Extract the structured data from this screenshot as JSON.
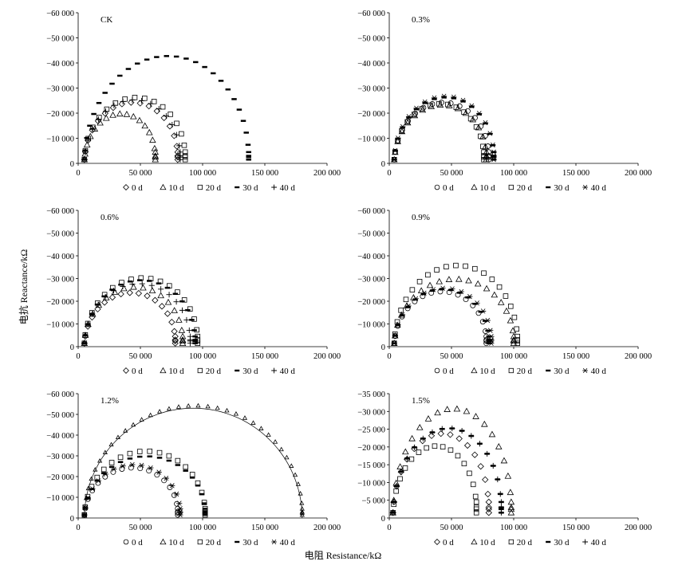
{
  "figure": {
    "ylabel": "电抗 Reactance/kΩ",
    "xlabel": "电阻 Resistance/kΩ"
  },
  "chart_data": [
    {
      "type": "scatter",
      "title": "CK",
      "x_ticks": [
        "0",
        "50 000",
        "100 000",
        "150 000",
        "200 000"
      ],
      "y_ticks": [
        "0",
        "−10 000",
        "−20 000",
        "−30 000",
        "−40 000",
        "−50 000",
        "−60 000"
      ],
      "xlim": [
        0,
        200000
      ],
      "ylim": [
        0,
        -60000
      ],
      "legend": [
        "0 d",
        "10 d",
        "20 d",
        "30 d",
        "40 d"
      ],
      "series": [
        {
          "name": "0 d",
          "marker": "diamond",
          "x_range": [
            5000,
            80000
          ],
          "peak": -23000
        },
        {
          "name": "10 d",
          "marker": "triangle",
          "x_range": [
            5000,
            62000
          ],
          "peak": -18500
        },
        {
          "name": "20 d",
          "marker": "square",
          "x_range": [
            5000,
            86000
          ],
          "peak": -25000
        },
        {
          "name": "30 d",
          "marker": "dash",
          "x_range": [
            5000,
            137000
          ],
          "peak": -41500
        },
        {
          "name": "40 d",
          "marker": "plus",
          "x_range": [
            5000,
            82000
          ],
          "peak": -24000
        }
      ]
    },
    {
      "type": "scatter",
      "title": "0.3%",
      "x_ticks": [
        "0",
        "50 000",
        "100 000",
        "150 000",
        "200 000"
      ],
      "y_ticks": [
        "0",
        "−10 000",
        "−20 000",
        "−30 000",
        "−40 000",
        "−50 000",
        "−60 000"
      ],
      "xlim": [
        0,
        200000
      ],
      "ylim": [
        0,
        -60000
      ],
      "legend": [
        "0 d",
        "10 d",
        "20 d",
        "30 d",
        "40 d"
      ],
      "series": [
        {
          "name": "0 d",
          "marker": "circle",
          "x_range": [
            4000,
            80000
          ],
          "peak": -23000
        },
        {
          "name": "10 d",
          "marker": "triangle",
          "x_range": [
            4000,
            78000
          ],
          "peak": -22000
        },
        {
          "name": "20 d",
          "marker": "square",
          "x_range": [
            4000,
            76000
          ],
          "peak": -22500
        },
        {
          "name": "30 d",
          "marker": "dash",
          "x_range": [
            4000,
            84000
          ],
          "peak": -25000
        },
        {
          "name": "40 d",
          "marker": "asterisk",
          "x_range": [
            4000,
            84000
          ],
          "peak": -25500
        }
      ]
    },
    {
      "type": "scatter",
      "title": "0.6%",
      "x_ticks": [
        "0",
        "50 000",
        "100 000",
        "150 000",
        "200 000"
      ],
      "y_ticks": [
        "0",
        "−10 000",
        "−20 000",
        "−30 000",
        "−40 000",
        "−50 000",
        "−60 000"
      ],
      "xlim": [
        0,
        200000
      ],
      "ylim": [
        0,
        -60000
      ],
      "legend": [
        "0 d",
        "10 d",
        "20 d",
        "30 d",
        "40 d"
      ],
      "series": [
        {
          "name": "0 d",
          "marker": "diamond",
          "x_range": [
            5000,
            78000
          ],
          "peak": -22500
        },
        {
          "name": "10 d",
          "marker": "triangle",
          "x_range": [
            5000,
            84000
          ],
          "peak": -25000
        },
        {
          "name": "20 d",
          "marker": "square",
          "x_range": [
            5000,
            96000
          ],
          "peak": -29000
        },
        {
          "name": "30 d",
          "marker": "dash",
          "x_range": [
            5000,
            94000
          ],
          "peak": -28000
        },
        {
          "name": "40 d",
          "marker": "plus",
          "x_range": [
            5000,
            90000
          ],
          "peak": -26500
        }
      ]
    },
    {
      "type": "scatter",
      "title": "0.9%",
      "x_ticks": [
        "0",
        "50 000",
        "100 000",
        "150 000",
        "200 000"
      ],
      "y_ticks": [
        "0",
        "−10 000",
        "−20 000",
        "−30 000",
        "−40 000",
        "−50 000",
        "−60 000"
      ],
      "xlim": [
        0,
        200000
      ],
      "ylim": [
        0,
        -60000
      ],
      "legend": [
        "0 d",
        "10 d",
        "20 d",
        "30 d",
        "40 d"
      ],
      "series": [
        {
          "name": "0 d",
          "marker": "circle",
          "x_range": [
            4000,
            78000
          ],
          "peak": -23000
        },
        {
          "name": "10 d",
          "marker": "triangle",
          "x_range": [
            4000,
            100000
          ],
          "peak": -28500
        },
        {
          "name": "20 d",
          "marker": "square",
          "x_range": [
            4000,
            103000
          ],
          "peak": -34500
        },
        {
          "name": "30 d",
          "marker": "dash",
          "x_range": [
            4000,
            80000
          ],
          "peak": -24000
        },
        {
          "name": "40 d",
          "marker": "asterisk",
          "x_range": [
            4000,
            82000
          ],
          "peak": -24500
        }
      ]
    },
    {
      "type": "scatter",
      "title": "1.2%",
      "x_ticks": [
        "0",
        "50 000",
        "100 000",
        "150 000",
        "200 000"
      ],
      "y_ticks": [
        "0",
        "−10 000",
        "−20 000",
        "−30 000",
        "−40 000",
        "−50 000",
        "−60 000"
      ],
      "xlim": [
        0,
        200000
      ],
      "ylim": [
        0,
        -60000
      ],
      "legend": [
        "0 d",
        "10 d",
        "20 d",
        "30 d",
        "40 d"
      ],
      "series": [
        {
          "name": "0 d",
          "marker": "circle",
          "x_range": [
            5000,
            80000
          ],
          "peak": -23000
        },
        {
          "name": "10 d",
          "marker": "triangle",
          "x_range": [
            5000,
            180000
          ],
          "peak": -53000
        },
        {
          "name": "20 d",
          "marker": "square",
          "x_range": [
            5000,
            102000
          ],
          "peak": -31000
        },
        {
          "name": "30 d",
          "marker": "dash",
          "x_range": [
            5000,
            102000
          ],
          "peak": -28500
        },
        {
          "name": "40 d",
          "marker": "asterisk",
          "x_range": [
            5000,
            82000
          ],
          "peak": -24500
        }
      ]
    },
    {
      "type": "scatter",
      "title": "1.5%",
      "x_ticks": [
        "0",
        "50 000",
        "100 000",
        "150 000",
        "200 000"
      ],
      "y_ticks": [
        "0",
        "−5 000",
        "−10 000",
        "−15 000",
        "−20 000",
        "−25 000",
        "−30 000",
        "−35 000"
      ],
      "xlim": [
        0,
        200000
      ],
      "ylim": [
        0,
        -35000
      ],
      "legend": [
        "0 d",
        "10 d",
        "20 d",
        "30 d",
        "40 d"
      ],
      "series": [
        {
          "name": "0 d",
          "marker": "diamond",
          "x_range": [
            3000,
            80000
          ],
          "peak": -22500
        },
        {
          "name": "10 d",
          "marker": "triangle",
          "x_range": [
            3000,
            98000
          ],
          "peak": -29500
        },
        {
          "name": "20 d",
          "marker": "square",
          "x_range": [
            3000,
            70000
          ],
          "peak": -19000
        },
        {
          "name": "30 d",
          "marker": "dash",
          "x_range": [
            3000,
            90000
          ],
          "peak": -24000
        },
        {
          "name": "40 d",
          "marker": "plus",
          "x_range": [
            3000,
            90000
          ],
          "peak": -24000
        }
      ]
    }
  ]
}
